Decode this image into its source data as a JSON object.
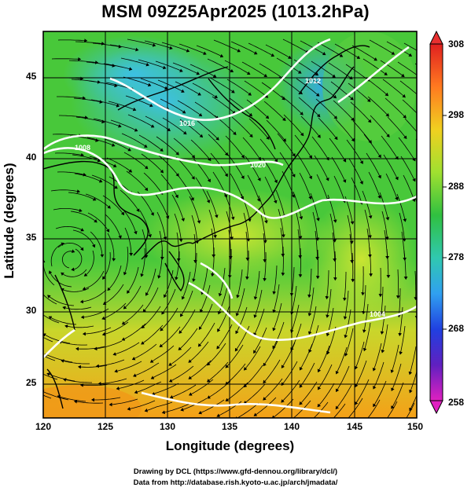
{
  "title": "MSM 09Z25Apr2025 (1013.2hPa)",
  "axes": {
    "xlabel": "Longitude (degrees)",
    "ylabel": "Latitude  (degrees)",
    "xticks": [
      "120",
      "125",
      "130",
      "135",
      "140",
      "145",
      "150"
    ],
    "yticks": [
      "25",
      "30",
      "35",
      "40",
      "45"
    ]
  },
  "colorbar": {
    "ticks": [
      "308",
      "298",
      "288",
      "278",
      "268",
      "258"
    ]
  },
  "credits": [
    "Drawing by DCL (https://www.gfd-dennou.org/library/dcl/)",
    "Data from http://database.rish.kyoto-u.ac.jp/arch/jmadata/"
  ],
  "contour_labels": [
    "1020",
    "1016",
    "1012",
    "1008",
    "1004"
  ],
  "colors": {
    "land_green": "#48c83a",
    "warm_yellow": "#c8e030",
    "orange_south": "#f0a020",
    "cold_cyan": "#40c8e0",
    "isobar": "#ffffff",
    "streamline": "#000000"
  }
}
